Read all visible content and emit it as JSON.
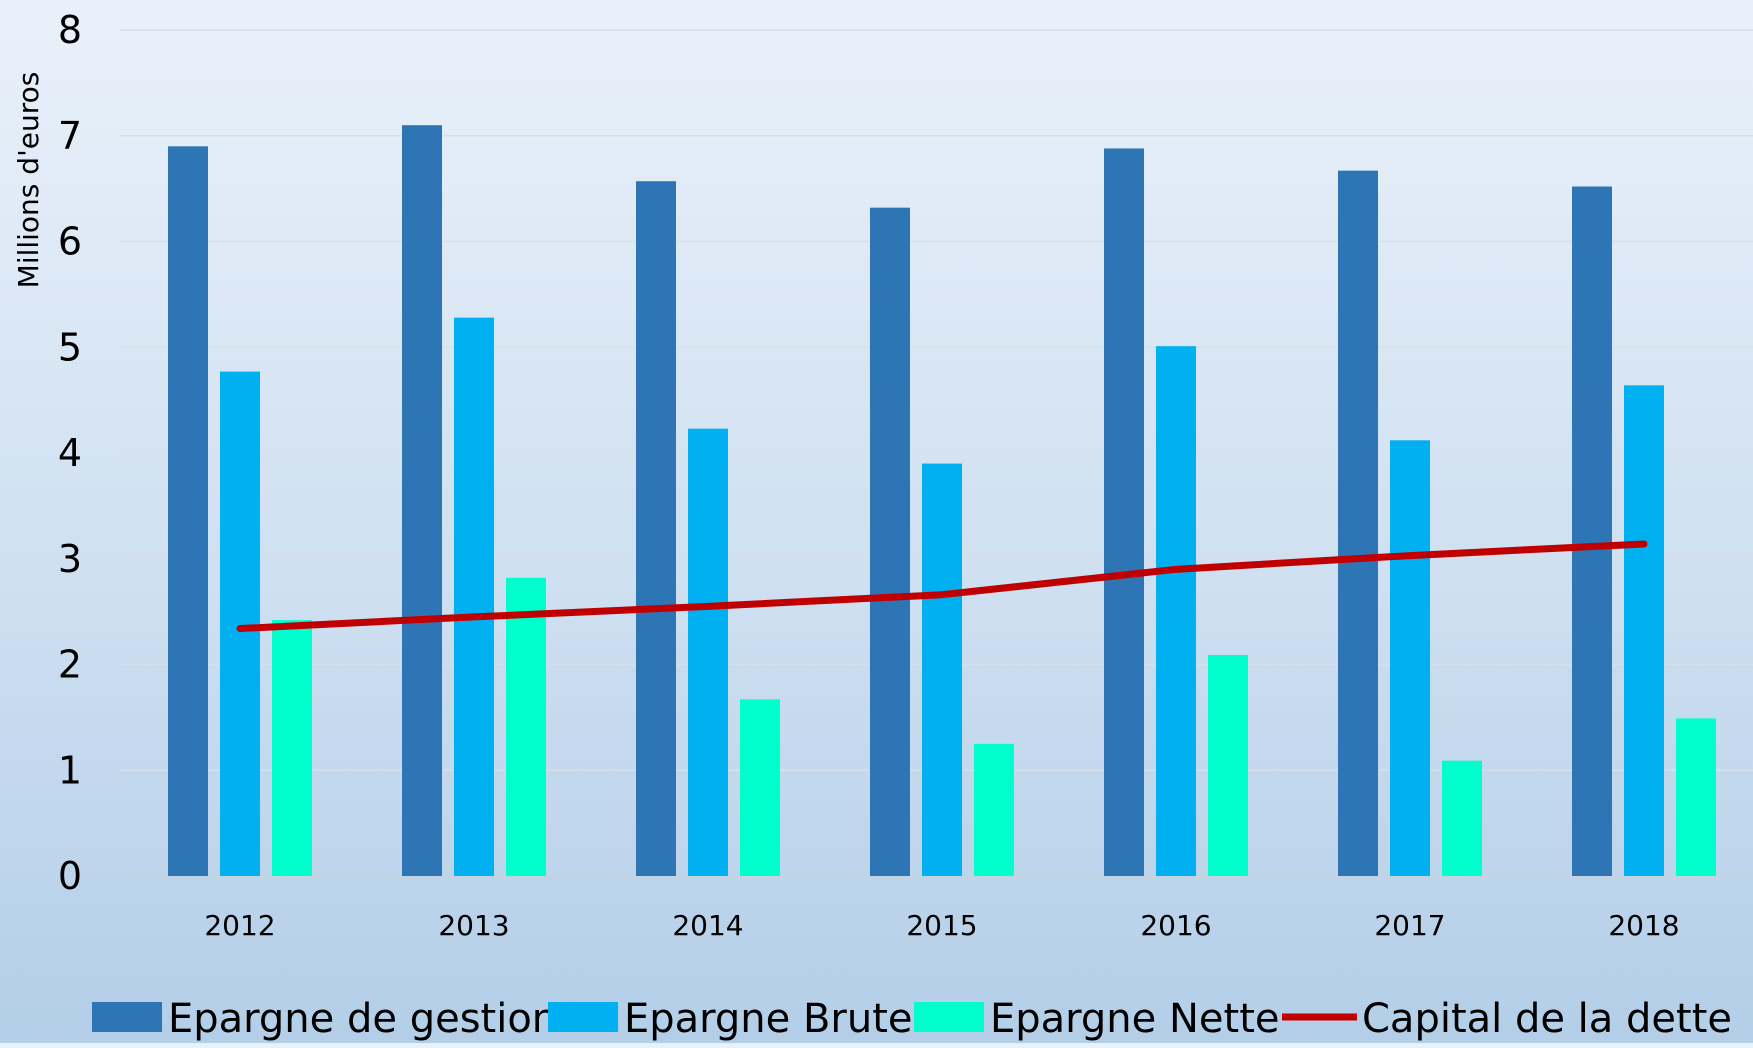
{
  "chart_data": {
    "type": "bar",
    "ylabel": "Millions d'euros",
    "ylim": [
      0,
      8
    ],
    "yticks": [
      "0",
      "1",
      "2",
      "3",
      "4",
      "5",
      "6",
      "7",
      "8"
    ],
    "categories": [
      "2012",
      "2013",
      "2014",
      "2015",
      "2016",
      "2017",
      "2018"
    ],
    "series": [
      {
        "name": "Epargne de gestion",
        "kind": "bar",
        "color": "#2e75b6",
        "values": [
          6.9,
          7.1,
          6.57,
          6.32,
          6.88,
          6.67,
          6.52
        ]
      },
      {
        "name": "Epargne Brute",
        "kind": "bar",
        "color": "#00b0f0",
        "values": [
          4.77,
          5.28,
          4.23,
          3.9,
          5.01,
          4.12,
          4.64
        ]
      },
      {
        "name": "Epargne Nette",
        "kind": "bar",
        "color": "#00ffcc",
        "values": [
          2.42,
          2.82,
          1.67,
          1.25,
          2.09,
          1.09,
          1.49
        ]
      },
      {
        "name": "Capital de la dette",
        "kind": "line",
        "color": "#c00000",
        "values": [
          2.34,
          2.45,
          2.55,
          2.66,
          2.9,
          3.03,
          3.14
        ]
      }
    ],
    "grid": true,
    "legend_position": "bottom"
  }
}
